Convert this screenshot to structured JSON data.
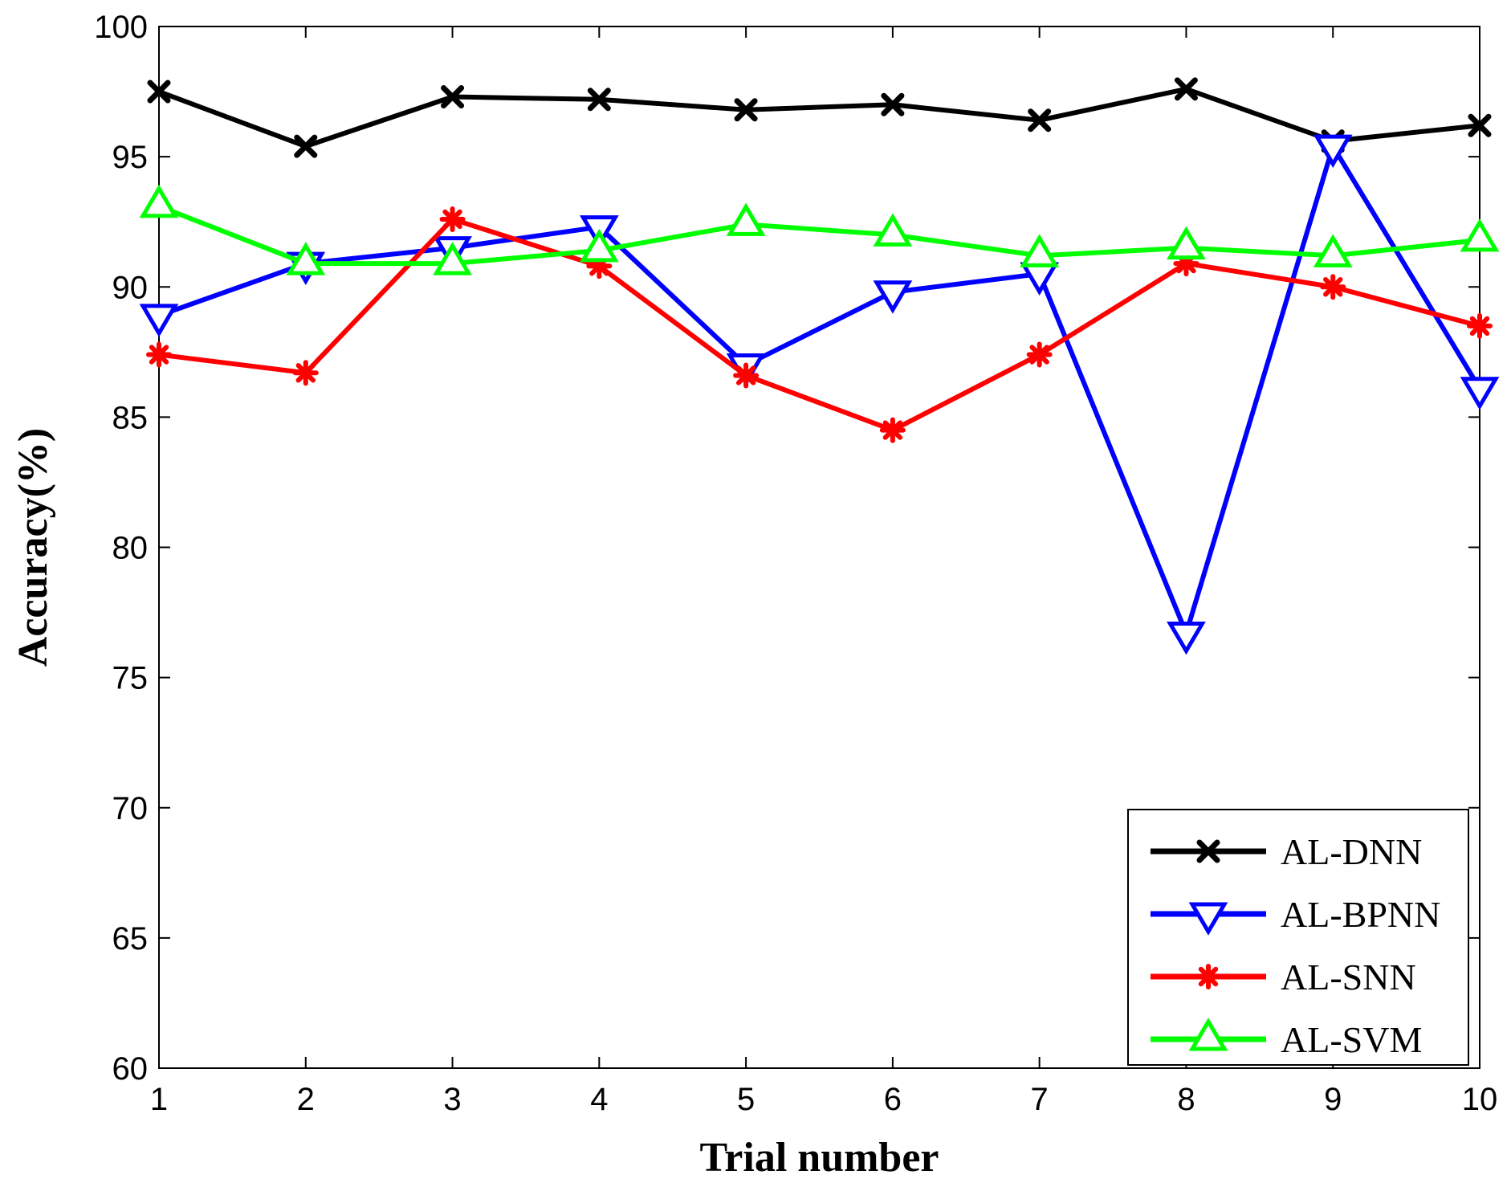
{
  "chart_data": {
    "type": "line",
    "title": "",
    "xlabel": "Trial number",
    "ylabel": "Accuracy(%)",
    "xlim": [
      1,
      10
    ],
    "ylim": [
      60,
      100
    ],
    "x": [
      1,
      2,
      3,
      4,
      5,
      6,
      7,
      8,
      9,
      10
    ],
    "xticks": [
      "1",
      "2",
      "3",
      "4",
      "5",
      "6",
      "7",
      "8",
      "9",
      "10"
    ],
    "yticks": [
      "60",
      "65",
      "70",
      "75",
      "80",
      "85",
      "90",
      "95",
      "100"
    ],
    "grid": false,
    "legend_position": "bottom-right",
    "series": [
      {
        "name": "AL-DNN",
        "color": "#000000",
        "marker": "x-cross",
        "values": [
          97.5,
          95.4,
          97.3,
          97.2,
          96.8,
          97.0,
          96.4,
          97.6,
          95.6,
          96.2
        ]
      },
      {
        "name": "AL-BPNN",
        "color": "#0000ff",
        "marker": "triangle-down",
        "values": [
          88.9,
          90.9,
          91.5,
          92.3,
          87.0,
          89.8,
          90.5,
          76.7,
          95.4,
          86.1
        ]
      },
      {
        "name": "AL-SNN",
        "color": "#ff0000",
        "marker": "asterisk",
        "values": [
          87.4,
          86.7,
          92.6,
          90.8,
          86.6,
          84.5,
          87.4,
          90.9,
          90.0,
          88.5
        ]
      },
      {
        "name": "AL-SVM",
        "color": "#00ff00",
        "marker": "triangle-up",
        "values": [
          93.1,
          90.9,
          90.9,
          91.4,
          92.4,
          92.0,
          91.2,
          91.5,
          91.2,
          91.8
        ]
      }
    ]
  }
}
